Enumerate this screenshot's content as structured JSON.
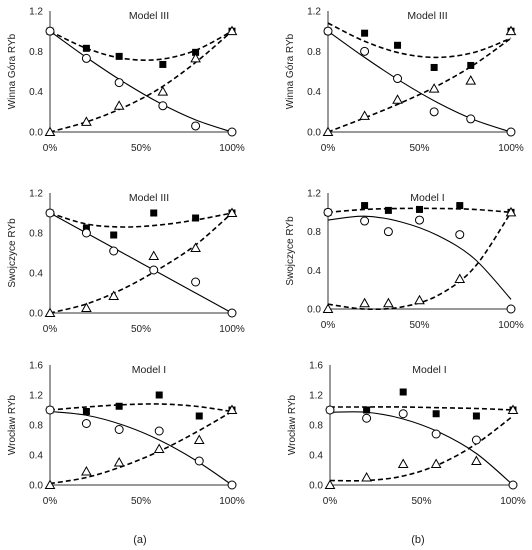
{
  "colors": {
    "ink": "#000000",
    "axis": "#333333",
    "text": "#222222"
  },
  "captions": [
    "(a)",
    "(b)"
  ],
  "chart_data": [
    {
      "type": "line",
      "title": "Model III",
      "ylabel": "Winna Góra RYb",
      "xticks": [
        "0%",
        "50%",
        "100%"
      ],
      "yticks": [
        "0.0",
        "0.4",
        "0.8",
        "1.2"
      ],
      "xlim": [
        0,
        100
      ],
      "ylim": [
        0,
        1.2
      ],
      "series": [
        {
          "marker": "square",
          "x": [
            0,
            20,
            38,
            62,
            80,
            100
          ],
          "y": [
            1.0,
            0.83,
            0.75,
            0.67,
            0.79,
            1.0
          ],
          "fit": {
            "style": "dashed",
            "x": [
              0,
              20,
              40,
              60,
              80,
              100
            ],
            "y": [
              1.0,
              0.83,
              0.73,
              0.72,
              0.81,
              1.0
            ]
          }
        },
        {
          "marker": "circle",
          "x": [
            0,
            20,
            38,
            62,
            80,
            100
          ],
          "y": [
            1.0,
            0.73,
            0.49,
            0.26,
            0.06,
            0.0
          ],
          "fit": {
            "style": "solid",
            "x": [
              0,
              20,
              40,
              60,
              80,
              100
            ],
            "y": [
              1.0,
              0.74,
              0.5,
              0.29,
              0.12,
              0.0
            ]
          }
        },
        {
          "marker": "triangle",
          "x": [
            0,
            20,
            38,
            62,
            80,
            100
          ],
          "y": [
            0.0,
            0.1,
            0.26,
            0.4,
            0.73,
            1.0
          ],
          "fit": {
            "style": "dashed",
            "x": [
              0,
              20,
              40,
              60,
              80,
              100
            ],
            "y": [
              0.0,
              0.1,
              0.24,
              0.43,
              0.69,
              1.0
            ]
          }
        }
      ]
    },
    {
      "type": "line",
      "title": "Model III",
      "ylabel": "Winna Góra RYb",
      "xticks": [
        "0%",
        "50%",
        "100%"
      ],
      "yticks": [
        "0.0",
        "0.4",
        "0.8",
        "1.2"
      ],
      "xlim": [
        0,
        100
      ],
      "ylim": [
        0,
        1.2
      ],
      "series": [
        {
          "marker": "square",
          "x": [
            0,
            20,
            38,
            58,
            78,
            100
          ],
          "y": [
            1.0,
            0.98,
            0.86,
            0.64,
            0.66,
            1.0
          ],
          "fit": {
            "style": "dashed",
            "x": [
              0,
              20,
              40,
              60,
              80,
              100
            ],
            "y": [
              1.08,
              0.9,
              0.78,
              0.74,
              0.79,
              0.93
            ]
          }
        },
        {
          "marker": "circle",
          "x": [
            0,
            20,
            38,
            58,
            78,
            100
          ],
          "y": [
            1.0,
            0.8,
            0.53,
            0.2,
            0.13,
            0.0
          ],
          "fit": {
            "style": "solid",
            "x": [
              0,
              20,
              40,
              60,
              80,
              100
            ],
            "y": [
              1.0,
              0.74,
              0.5,
              0.29,
              0.12,
              0.0
            ]
          }
        },
        {
          "marker": "triangle",
          "x": [
            0,
            20,
            38,
            58,
            78,
            100
          ],
          "y": [
            0.0,
            0.16,
            0.32,
            0.43,
            0.51,
            1.0
          ],
          "fit": {
            "style": "dashed",
            "x": [
              0,
              20,
              40,
              60,
              80,
              100
            ],
            "y": [
              0.0,
              0.14,
              0.29,
              0.46,
              0.67,
              0.93
            ]
          }
        }
      ]
    },
    {
      "type": "line",
      "title": "Model III",
      "ylabel": "Swojczyce RYb",
      "xticks": [
        "0%",
        "50%",
        "100%"
      ],
      "yticks": [
        "0.0",
        "0.4",
        "0.8",
        "1.2"
      ],
      "xlim": [
        0,
        100
      ],
      "ylim": [
        0,
        1.2
      ],
      "series": [
        {
          "marker": "square",
          "x": [
            0,
            20,
            35,
            57,
            80,
            100
          ],
          "y": [
            1.0,
            0.85,
            0.78,
            1.0,
            0.95,
            1.0
          ],
          "fit": {
            "style": "dashed",
            "x": [
              0,
              20,
              40,
              60,
              80,
              100
            ],
            "y": [
              1.0,
              0.89,
              0.86,
              0.88,
              0.93,
              1.0
            ]
          }
        },
        {
          "marker": "circle",
          "x": [
            0,
            20,
            35,
            57,
            80,
            100
          ],
          "y": [
            1.0,
            0.8,
            0.62,
            0.43,
            0.31,
            0.0
          ],
          "fit": {
            "style": "solid",
            "x": [
              0,
              20,
              40,
              60,
              80,
              100
            ],
            "y": [
              1.0,
              0.8,
              0.6,
              0.4,
              0.2,
              0.0
            ]
          }
        },
        {
          "marker": "triangle",
          "x": [
            0,
            20,
            35,
            57,
            80,
            100
          ],
          "y": [
            0.0,
            0.05,
            0.17,
            0.57,
            0.65,
            1.0
          ],
          "fit": {
            "style": "dashed",
            "x": [
              0,
              20,
              40,
              60,
              80,
              100
            ],
            "y": [
              0.0,
              0.09,
              0.24,
              0.44,
              0.68,
              1.0
            ]
          }
        }
      ]
    },
    {
      "type": "line",
      "title": "Model I",
      "ylabel": "Swojczyce RYb",
      "xticks": [
        "0%",
        "50%",
        "100%"
      ],
      "yticks": [
        "0.0",
        "0.4",
        "0.8",
        "1.2"
      ],
      "xlim": [
        0,
        100
      ],
      "ylim": [
        0,
        1.2
      ],
      "series": [
        {
          "marker": "square",
          "x": [
            0,
            20,
            33,
            50,
            72,
            100
          ],
          "y": [
            1.0,
            1.07,
            1.02,
            1.03,
            1.07,
            1.0
          ],
          "fit": {
            "style": "dashed",
            "x": [
              0,
              20,
              40,
              60,
              80,
              100
            ],
            "y": [
              1.0,
              1.03,
              1.04,
              1.04,
              1.03,
              1.0
            ]
          }
        },
        {
          "marker": "circle",
          "x": [
            0,
            20,
            33,
            50,
            72,
            100
          ],
          "y": [
            1.0,
            0.91,
            0.8,
            0.92,
            0.77,
            0.0
          ],
          "fit": {
            "style": "solid",
            "x": [
              0,
              20,
              40,
              60,
              80,
              100
            ],
            "y": [
              0.92,
              0.96,
              0.9,
              0.76,
              0.52,
              0.1
            ]
          }
        },
        {
          "marker": "triangle",
          "x": [
            0,
            20,
            33,
            50,
            72,
            100
          ],
          "y": [
            0.0,
            0.06,
            0.06,
            0.09,
            0.31,
            1.0
          ],
          "fit": {
            "style": "dashed",
            "x": [
              0,
              20,
              40,
              60,
              80,
              100
            ],
            "y": [
              0.05,
              0.0,
              0.02,
              0.14,
              0.43,
              1.0
            ]
          }
        }
      ]
    },
    {
      "type": "line",
      "title": "Model I",
      "ylabel": "Wrocław RYb",
      "xticks": [
        "0%",
        "50%",
        "100%"
      ],
      "yticks": [
        "0.0",
        "0.4",
        "0.8",
        "1.2",
        "1.6"
      ],
      "xlim": [
        0,
        100
      ],
      "ylim": [
        0,
        1.6
      ],
      "series": [
        {
          "marker": "square",
          "x": [
            0,
            20,
            38,
            60,
            82,
            100
          ],
          "y": [
            1.0,
            0.98,
            1.05,
            1.2,
            0.92,
            1.0
          ],
          "fit": {
            "style": "dashed",
            "x": [
              0,
              20,
              40,
              60,
              80,
              100
            ],
            "y": [
              1.0,
              1.04,
              1.07,
              1.08,
              1.05,
              0.98
            ]
          }
        },
        {
          "marker": "circle",
          "x": [
            0,
            20,
            38,
            60,
            82,
            100
          ],
          "y": [
            1.0,
            0.82,
            0.74,
            0.72,
            0.32,
            0.0
          ],
          "fit": {
            "style": "solid",
            "x": [
              0,
              20,
              40,
              60,
              80,
              100
            ],
            "y": [
              0.98,
              0.93,
              0.8,
              0.6,
              0.33,
              0.0
            ]
          }
        },
        {
          "marker": "triangle",
          "x": [
            0,
            20,
            38,
            60,
            82,
            100
          ],
          "y": [
            0.0,
            0.18,
            0.3,
            0.48,
            0.6,
            1.0
          ],
          "fit": {
            "style": "dashed",
            "x": [
              0,
              20,
              40,
              60,
              80,
              100
            ],
            "y": [
              0.02,
              0.1,
              0.25,
              0.45,
              0.7,
              0.98
            ]
          }
        }
      ]
    },
    {
      "type": "line",
      "title": "Model I",
      "ylabel": "Wrocław RYb",
      "xticks": [
        "0%",
        "50%",
        "100%"
      ],
      "yticks": [
        "0.0",
        "0.4",
        "0.8",
        "1.2",
        "1.6"
      ],
      "xlim": [
        0,
        100
      ],
      "ylim": [
        0,
        1.6
      ],
      "series": [
        {
          "marker": "square",
          "x": [
            0,
            20,
            40,
            58,
            80,
            100
          ],
          "y": [
            1.0,
            1.0,
            1.24,
            0.95,
            0.92,
            1.0
          ],
          "fit": {
            "style": "dashed",
            "x": [
              0,
              20,
              40,
              60,
              80,
              100
            ],
            "y": [
              1.04,
              1.04,
              1.04,
              1.03,
              1.02,
              1.0
            ]
          }
        },
        {
          "marker": "circle",
          "x": [
            0,
            20,
            40,
            58,
            80,
            100
          ],
          "y": [
            1.0,
            0.89,
            0.95,
            0.68,
            0.6,
            0.0
          ],
          "fit": {
            "style": "solid",
            "x": [
              0,
              20,
              40,
              60,
              80,
              100
            ],
            "y": [
              0.97,
              0.97,
              0.88,
              0.7,
              0.42,
              0.0
            ]
          }
        },
        {
          "marker": "triangle",
          "x": [
            0,
            20,
            40,
            58,
            80,
            100
          ],
          "y": [
            0.0,
            0.1,
            0.28,
            0.28,
            0.32,
            1.0
          ],
          "fit": {
            "style": "dashed",
            "x": [
              0,
              20,
              40,
              60,
              80,
              100
            ],
            "y": [
              0.06,
              0.06,
              0.12,
              0.28,
              0.55,
              0.92
            ]
          }
        }
      ]
    }
  ]
}
